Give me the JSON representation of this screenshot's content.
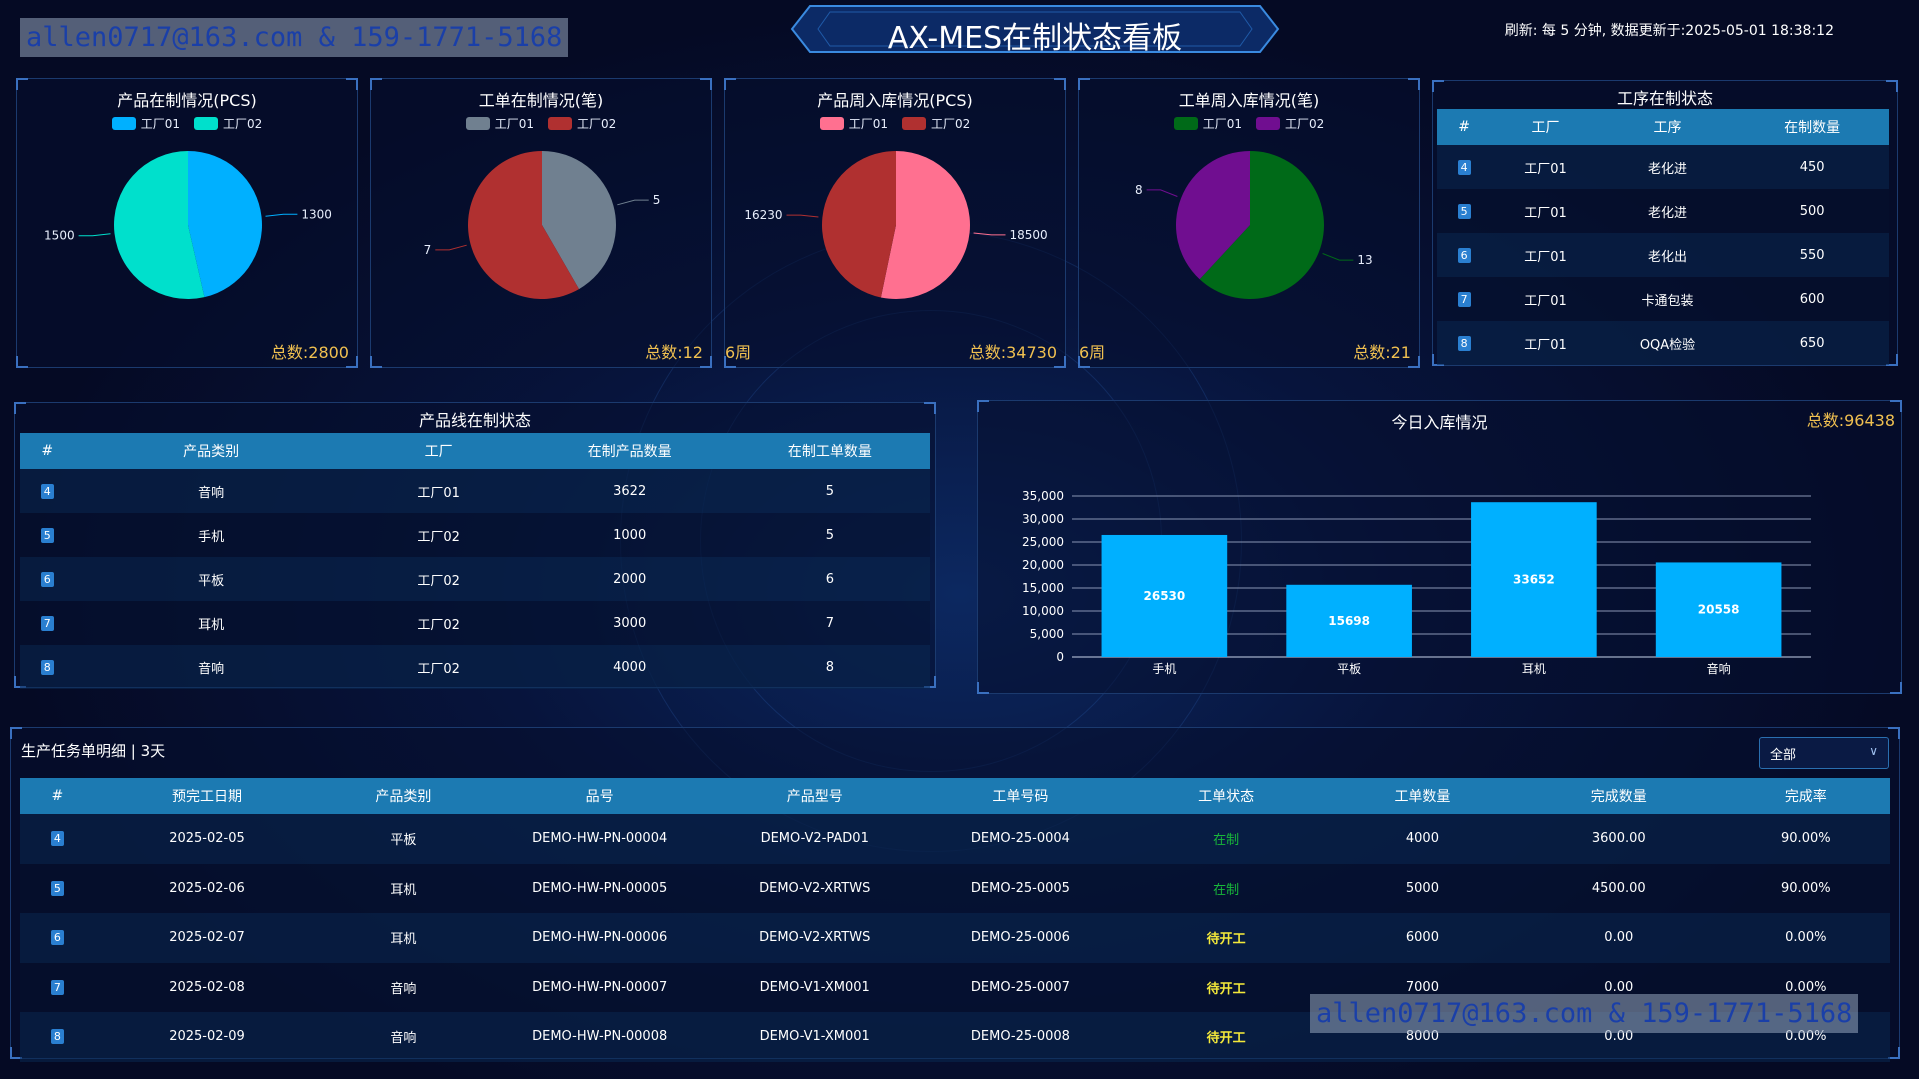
{
  "header": {
    "title": "AX-MES在制状态看板",
    "refresh_text": "刷新: 每 5 分钟, 数据更新于:2025-05-01 18:38:12",
    "watermark": "allen0717@163.com & 159-1771-5168"
  },
  "pies": [
    {
      "title": "产品在制情况(PCS)",
      "legend": [
        "工厂01",
        "工厂02"
      ],
      "colors": [
        "#00b0ff",
        "#00e0cc"
      ],
      "values": [
        1300,
        1500
      ],
      "labels": [
        "1300",
        "1500"
      ],
      "total": "总数:2800",
      "week": ""
    },
    {
      "title": "工单在制情况(笔)",
      "legend": [
        "工厂01",
        "工厂02"
      ],
      "colors": [
        "#708090",
        "#b03030"
      ],
      "values": [
        5,
        7
      ],
      "labels": [
        "5",
        "7"
      ],
      "total": "总数:12",
      "week": ""
    },
    {
      "title": "产品周入库情况(PCS)",
      "legend": [
        "工厂01",
        "工厂02"
      ],
      "colors": [
        "#ff7090",
        "#b03030"
      ],
      "values": [
        18500,
        16230
      ],
      "labels": [
        "18500",
        "16230"
      ],
      "total": "总数:34730",
      "week": "6周"
    },
    {
      "title": "工单周入库情况(笔)",
      "legend": [
        "工厂01",
        "工厂02"
      ],
      "colors": [
        "#006a18",
        "#700e90"
      ],
      "values": [
        13,
        8
      ],
      "labels": [
        "13",
        "8"
      ],
      "total": "总数:21",
      "week": "6周"
    }
  ],
  "process_table": {
    "title": "工序在制状态",
    "headers": [
      "#",
      "工厂",
      "工序",
      "在制数量"
    ],
    "rows": [
      [
        "4",
        "工厂01",
        "老化进",
        "450"
      ],
      [
        "5",
        "工厂01",
        "老化进",
        "500"
      ],
      [
        "6",
        "工厂01",
        "老化出",
        "550"
      ],
      [
        "7",
        "工厂01",
        "卡通包装",
        "600"
      ],
      [
        "8",
        "工厂01",
        "OQA检验",
        "650"
      ]
    ]
  },
  "line_table": {
    "title": "产品线在制状态",
    "headers": [
      "#",
      "产品类别",
      "工厂",
      "在制产品数量",
      "在制工单数量"
    ],
    "rows": [
      [
        "4",
        "音响",
        "工厂01",
        "3622",
        "5"
      ],
      [
        "5",
        "手机",
        "工厂02",
        "1000",
        "5"
      ],
      [
        "6",
        "平板",
        "工厂02",
        "2000",
        "6"
      ],
      [
        "7",
        "耳机",
        "工厂02",
        "3000",
        "7"
      ],
      [
        "8",
        "音响",
        "工厂02",
        "4000",
        "8"
      ]
    ]
  },
  "bar_panel": {
    "title": "今日入库情况",
    "total": "总数:96438"
  },
  "chart_data": {
    "type": "bar",
    "title": "今日入库情况",
    "categories": [
      "手机",
      "平板",
      "耳机",
      "音响"
    ],
    "values": [
      26530,
      15698,
      33652,
      20558
    ],
    "ylim": [
      0,
      35000
    ],
    "yticks": [
      "0",
      "5,000",
      "10,000",
      "15,000",
      "20,000",
      "25,000",
      "30,000",
      "35,000"
    ],
    "bar_color": "#00b0ff",
    "grid": true
  },
  "task_table": {
    "title": "生产任务单明细 | 3天",
    "filter": "全部",
    "headers": [
      "#",
      "预完工日期",
      "产品类别",
      "品号",
      "产品型号",
      "工单号码",
      "工单状态",
      "工单数量",
      "完成数量",
      "完成率"
    ],
    "rows": [
      {
        "cells": [
          "4",
          "2025-02-05",
          "平板",
          "DEMO-HW-PN-00004",
          "DEMO-V2-PAD01",
          "DEMO-25-0004",
          "在制",
          "4000",
          "3600.00",
          "90.00%"
        ],
        "status": "green"
      },
      {
        "cells": [
          "5",
          "2025-02-06",
          "耳机",
          "DEMO-HW-PN-00005",
          "DEMO-V2-XRTWS",
          "DEMO-25-0005",
          "在制",
          "5000",
          "4500.00",
          "90.00%"
        ],
        "status": "green"
      },
      {
        "cells": [
          "6",
          "2025-02-07",
          "耳机",
          "DEMO-HW-PN-00006",
          "DEMO-V2-XRTWS",
          "DEMO-25-0006",
          "待开工",
          "6000",
          "0.00",
          "0.00%"
        ],
        "status": "yellow"
      },
      {
        "cells": [
          "7",
          "2025-02-08",
          "音响",
          "DEMO-HW-PN-00007",
          "DEMO-V1-XM001",
          "DEMO-25-0007",
          "待开工",
          "7000",
          "0.00",
          "0.00%"
        ],
        "status": "yellow"
      },
      {
        "cells": [
          "8",
          "2025-02-09",
          "音响",
          "DEMO-HW-PN-00008",
          "DEMO-V1-XM001",
          "DEMO-25-0008",
          "待开工",
          "8000",
          "0.00",
          "0.00%"
        ],
        "status": "yellow"
      }
    ]
  }
}
